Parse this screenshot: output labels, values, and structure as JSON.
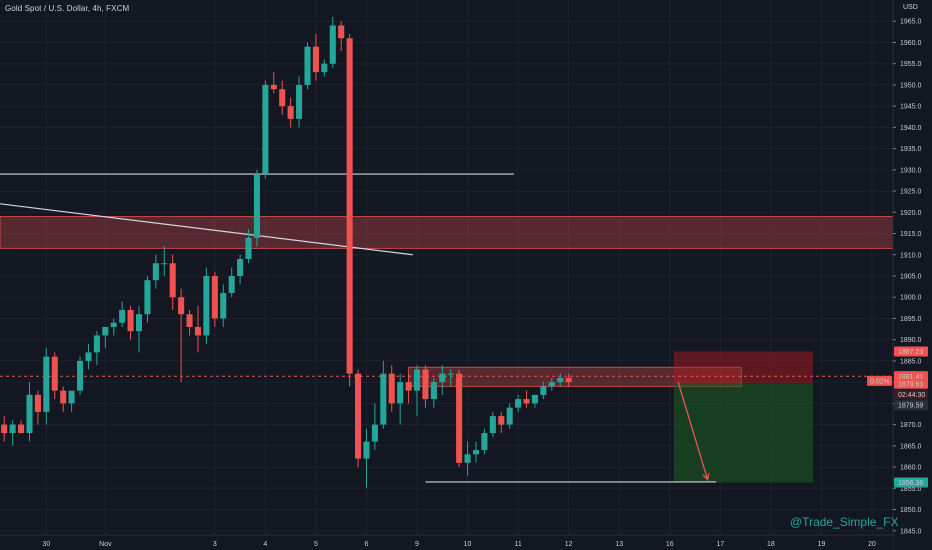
{
  "header": {
    "symbol_title": "Gold Spot / U.S. Dollar, 4h, FXCM",
    "currency": "USD"
  },
  "watermark": "@Trade_Simple_FX",
  "colors": {
    "background": "#131722",
    "grid": "#1e2230",
    "bull": "#26a69a",
    "bear": "#ef5350",
    "axis_text": "#c9ccd4",
    "zone": "#ef5350",
    "take_profit": "#1b5e20",
    "stop_loss": "#b71c1c"
  },
  "chart_data": {
    "type": "candlestick",
    "title": "Gold Spot / U.S. Dollar, 4h, FXCM",
    "xlabel": "",
    "ylabel": "USD",
    "ylim": [
      1844,
      1970
    ],
    "y_ticks": [
      1845,
      1850,
      1855,
      1860,
      1865,
      1870,
      1875,
      1880,
      1885,
      1890,
      1895,
      1900,
      1905,
      1910,
      1915,
      1920,
      1925,
      1930,
      1935,
      1940,
      1945,
      1950,
      1955,
      1960,
      1965
    ],
    "grid": true,
    "x_ticks": [
      {
        "label": "30",
        "x": 5.5
      },
      {
        "label": "Nov",
        "x": 12.5
      },
      {
        "label": "3",
        "x": 25.5
      },
      {
        "label": "4",
        "x": 31.5
      },
      {
        "label": "5",
        "x": 37.5
      },
      {
        "label": "6",
        "x": 43.5
      },
      {
        "label": "9",
        "x": 49.5
      },
      {
        "label": "10",
        "x": 55.5
      },
      {
        "label": "11",
        "x": 61.5
      },
      {
        "label": "12",
        "x": 67.5
      },
      {
        "label": "13",
        "x": 73.5
      },
      {
        "label": "16",
        "x": 79.5
      },
      {
        "label": "17",
        "x": 85.5
      },
      {
        "label": "18",
        "x": 91.5
      },
      {
        "label": "19",
        "x": 97.5
      },
      {
        "label": "20",
        "x": 103.5
      }
    ],
    "xlim": [
      0,
      106
    ],
    "candles": [
      [
        1870,
        1872,
        1866,
        1868
      ],
      [
        1868,
        1871,
        1865,
        1870
      ],
      [
        1870,
        1871,
        1868,
        1868
      ],
      [
        1868,
        1880,
        1866,
        1877
      ],
      [
        1877,
        1878,
        1870,
        1873
      ],
      [
        1873,
        1888,
        1870,
        1886
      ],
      [
        1886,
        1887,
        1876,
        1878
      ],
      [
        1878,
        1879,
        1873,
        1875
      ],
      [
        1875,
        1878,
        1873,
        1878
      ],
      [
        1878,
        1886,
        1877,
        1885
      ],
      [
        1885,
        1889,
        1883,
        1887
      ],
      [
        1887,
        1892,
        1884,
        1891
      ],
      [
        1891,
        1893,
        1888,
        1893
      ],
      [
        1893,
        1895,
        1891,
        1894
      ],
      [
        1894,
        1899,
        1893,
        1897
      ],
      [
        1897,
        1898,
        1890,
        1892
      ],
      [
        1892,
        1898,
        1887,
        1896
      ],
      [
        1896,
        1905,
        1894,
        1904
      ],
      [
        1904,
        1910,
        1902,
        1908
      ],
      [
        1908,
        1912,
        1905,
        1908
      ],
      [
        1908,
        1910,
        1897,
        1900
      ],
      [
        1900,
        1902,
        1880,
        1896
      ],
      [
        1896,
        1897,
        1891,
        1893
      ],
      [
        1893,
        1898,
        1887,
        1891
      ],
      [
        1891,
        1907,
        1889,
        1905
      ],
      [
        1905,
        1906,
        1893,
        1895
      ],
      [
        1895,
        1903,
        1893,
        1901
      ],
      [
        1901,
        1907,
        1900,
        1905
      ],
      [
        1905,
        1910,
        1903,
        1909
      ],
      [
        1909,
        1916,
        1908,
        1914
      ],
      [
        1914,
        1930,
        1912,
        1929
      ],
      [
        1929,
        1951,
        1928,
        1950
      ],
      [
        1950,
        1953,
        1948,
        1949
      ],
      [
        1949,
        1951,
        1943,
        1945
      ],
      [
        1945,
        1947,
        1940,
        1942
      ],
      [
        1942,
        1952,
        1940,
        1950
      ],
      [
        1950,
        1960,
        1949,
        1959
      ],
      [
        1959,
        1962,
        1951,
        1953
      ],
      [
        1953,
        1956,
        1952,
        1955
      ],
      [
        1955,
        1966,
        1954,
        1964
      ],
      [
        1964,
        1965,
        1958,
        1961
      ],
      [
        1961,
        1962,
        1879,
        1882
      ],
      [
        1882,
        1883,
        1860,
        1862
      ],
      [
        1862,
        1869,
        1855,
        1866
      ],
      [
        1866,
        1875,
        1864,
        1870
      ],
      [
        1870,
        1885,
        1869,
        1882
      ],
      [
        1882,
        1884,
        1873,
        1875
      ],
      [
        1875,
        1882,
        1870,
        1880
      ],
      [
        1880,
        1882,
        1875,
        1878
      ],
      [
        1878,
        1884,
        1872,
        1883
      ],
      [
        1883,
        1884,
        1874,
        1876
      ],
      [
        1876,
        1881,
        1874,
        1880
      ],
      [
        1880,
        1884,
        1877,
        1882
      ],
      [
        1882,
        1883,
        1879,
        1882
      ],
      [
        1882,
        1883,
        1860,
        1861
      ],
      [
        1861,
        1866,
        1858,
        1863
      ],
      [
        1863,
        1866,
        1861,
        1864
      ],
      [
        1864,
        1869,
        1863,
        1868
      ],
      [
        1868,
        1873,
        1867,
        1872
      ],
      [
        1872,
        1873,
        1868,
        1870
      ],
      [
        1870,
        1875,
        1869,
        1874
      ],
      [
        1874,
        1877,
        1873,
        1876
      ],
      [
        1876,
        1878,
        1874,
        1875
      ],
      [
        1875,
        1877,
        1874,
        1877
      ],
      [
        1877,
        1880,
        1876,
        1879
      ],
      [
        1879,
        1881,
        1878,
        1880
      ],
      [
        1880,
        1882,
        1879,
        1881
      ],
      [
        1881,
        1882,
        1879,
        1880
      ]
    ],
    "horizontal_lines": [
      {
        "name": "resistance",
        "y": 1929,
        "x_start": 0,
        "x_end": 61,
        "color": "#d1d4dc"
      },
      {
        "name": "support",
        "y": 1856.5,
        "x_start": 50.5,
        "x_end": 85,
        "color": "#d1d4dc"
      }
    ],
    "trendline": {
      "from": [
        0,
        1922
      ],
      "to": [
        49,
        1910
      ],
      "color": "#d1d4dc"
    },
    "zones": [
      {
        "name": "supply-zone",
        "y_top": 1919,
        "y_bottom": 1911.5,
        "x_start": 0,
        "x_end": 106,
        "color": "#ef5350"
      },
      {
        "name": "entry-zone",
        "y_top": 1883.5,
        "y_bottom": 1879,
        "x_start": 48.5,
        "x_end": 88,
        "color": "#ef5350"
      }
    ],
    "position": {
      "type": "short",
      "x_start": 80,
      "x_end": 96.5,
      "entry": 1879.59,
      "stop": 1887.23,
      "target": 1856.36,
      "arrow_from": [
        80.5,
        1880
      ],
      "arrow_to": [
        84,
        1857
      ]
    },
    "price_line": 1881.4,
    "price_labels": [
      {
        "text": "1887.23",
        "y": 1887.23,
        "bg": "#ef5350",
        "fg": "#131722"
      },
      {
        "text": "1881.41",
        "y": 1881.41,
        "bg": "#ef5350",
        "fg": "#ffffff"
      },
      {
        "text": "1879.63",
        "y": 1879.63,
        "bg": "#ef5350",
        "fg": "#ffffff"
      },
      {
        "text": "02:44:30",
        "y": 1877.1,
        "bg": "#3a1f22",
        "fg": "#d1d4dc"
      },
      {
        "text": "1879.59",
        "y": 1874.6,
        "bg": "#2a2e39",
        "fg": "#d1d4dc"
      },
      {
        "text": "1856.36",
        "y": 1856.36,
        "bg": "#26a69a",
        "fg": "#131722"
      }
    ],
    "percent_label": {
      "text": "0.02%",
      "y": 1880.3
    }
  }
}
